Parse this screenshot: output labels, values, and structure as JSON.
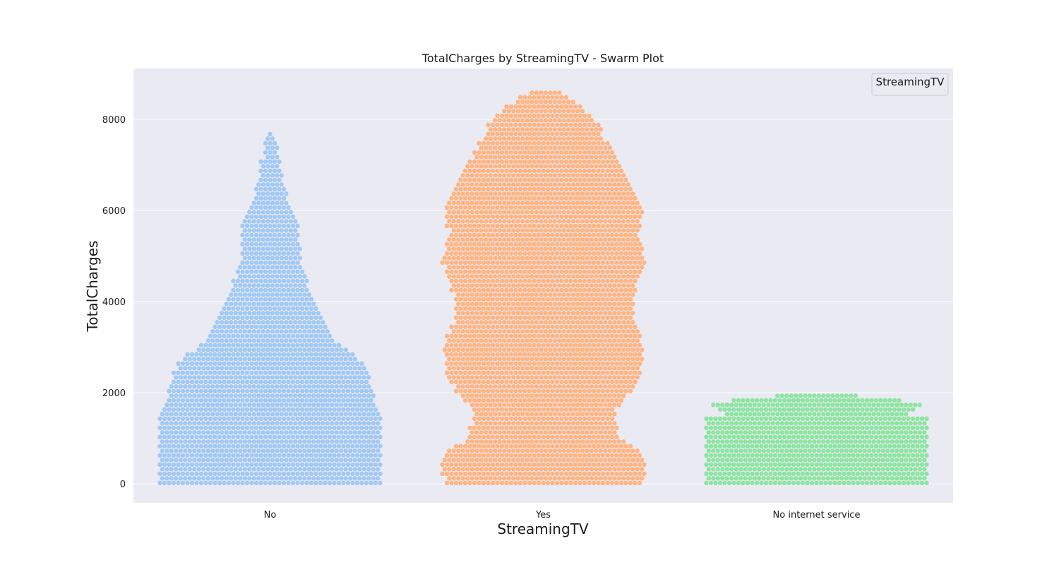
{
  "chart_data": {
    "type": "scatter",
    "subtype": "swarm",
    "title": "TotalCharges by StreamingTV - Swarm Plot",
    "xlabel": "StreamingTV",
    "ylabel": "TotalCharges",
    "ylim": [
      -400,
      9100
    ],
    "yticks": [
      0,
      2000,
      4000,
      6000,
      8000
    ],
    "grid": true,
    "legend": {
      "title": "StreamingTV",
      "placement": "top-right",
      "entries": []
    },
    "categories": [
      "No",
      "Yes",
      "No internet service"
    ],
    "colors": [
      "#a1c9f4",
      "#ffb482",
      "#8de5a1"
    ],
    "distributions": [
      {
        "name": "No",
        "min": 19,
        "max": 7750,
        "profile": [
          [
            0,
            1.0
          ],
          [
            400,
            1.0
          ],
          [
            1000,
            1.0
          ],
          [
            1600,
            1.0
          ],
          [
            1700,
            0.95
          ],
          [
            2100,
            0.93
          ],
          [
            2700,
            0.82
          ],
          [
            3200,
            0.56
          ],
          [
            3800,
            0.46
          ],
          [
            4400,
            0.34
          ],
          [
            5000,
            0.27
          ],
          [
            5800,
            0.26
          ],
          [
            6200,
            0.17
          ],
          [
            6700,
            0.11
          ],
          [
            7200,
            0.08
          ],
          [
            7600,
            0.05
          ],
          [
            7750,
            0.03
          ]
        ]
      },
      {
        "name": "Yes",
        "min": 19,
        "max": 8680,
        "profile": [
          [
            0,
            0.88
          ],
          [
            300,
            0.92
          ],
          [
            700,
            0.9
          ],
          [
            1000,
            0.68
          ],
          [
            1600,
            0.64
          ],
          [
            2300,
            0.87
          ],
          [
            3000,
            0.91
          ],
          [
            3500,
            0.82
          ],
          [
            4200,
            0.82
          ],
          [
            4900,
            0.92
          ],
          [
            5500,
            0.85
          ],
          [
            6000,
            0.9
          ],
          [
            6400,
            0.82
          ],
          [
            7000,
            0.7
          ],
          [
            7500,
            0.57
          ],
          [
            7900,
            0.49
          ],
          [
            8300,
            0.33
          ],
          [
            8600,
            0.14
          ],
          [
            8680,
            0.06
          ]
        ]
      },
      {
        "name": "No internet service",
        "min": 19,
        "max": 2010,
        "profile": [
          [
            0,
            1.0
          ],
          [
            1450,
            1.0
          ],
          [
            1500,
            0.82
          ],
          [
            1750,
            0.97
          ],
          [
            1850,
            0.72
          ],
          [
            1950,
            0.32
          ],
          [
            2010,
            0.1
          ]
        ]
      }
    ]
  }
}
